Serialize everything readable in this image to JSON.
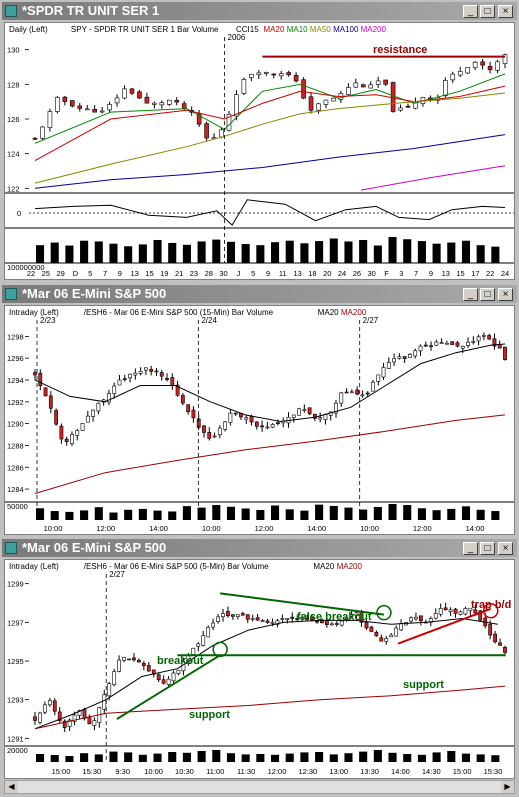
{
  "windows": [
    {
      "title": "*SPDR TR UNIT SER 1",
      "header": [
        {
          "text": "Daily  (Left)",
          "color": "#000000"
        },
        {
          "text": "SPY - SPDR TR UNIT SER 1  Bar  Volume",
          "color": "#000000"
        },
        {
          "text": "CCI15",
          "color": "#000000"
        },
        {
          "text": "MA20",
          "color": "#cc0000"
        },
        {
          "text": "MA10",
          "color": "#008800"
        },
        {
          "text": "MA50",
          "color": "#888800"
        },
        {
          "text": "MA100",
          "color": "#000099"
        },
        {
          "text": "MA200",
          "color": "#cc00cc"
        }
      ],
      "separator_label": "2006",
      "y_ticks": [
        "130",
        "128",
        "126",
        "124",
        "122"
      ],
      "cci_tick": "0",
      "volume_tick": "100000000",
      "x_ticks": [
        "22",
        "25",
        "29",
        "D",
        "5",
        "7",
        "9",
        "13",
        "15",
        "19",
        "21",
        "23",
        "28",
        "30",
        "J",
        "5",
        "9",
        "11",
        "13",
        "18",
        "20",
        "24",
        "26",
        "30",
        "F",
        "3",
        "7",
        "9",
        "13",
        "15",
        "17",
        "22",
        "24"
      ],
      "annotations": [
        {
          "text": "resistance",
          "color": "#990000"
        }
      ]
    },
    {
      "title": "*Mar 06  E-Mini S&P 500",
      "header": [
        {
          "text": "Intraday  (Left)",
          "color": "#000000"
        },
        {
          "text": "/ESH6 - Mar 06  E-Mini S&P 500  (15-Min)  Bar  Volume",
          "color": "#000000"
        },
        {
          "text": "MA20",
          "color": "#000000"
        },
        {
          "text": "MA200",
          "color": "#990000"
        }
      ],
      "separator_labels": [
        "2/23",
        "2/24",
        "2/27"
      ],
      "y_ticks": [
        "1298",
        "1296",
        "1294",
        "1292",
        "1290",
        "1288",
        "1286",
        "1284"
      ],
      "volume_tick": "50000",
      "x_ticks": [
        "10:00",
        "12:00",
        "14:00",
        "10:00",
        "12:00",
        "14:00",
        "10:00",
        "12:00",
        "14:00"
      ]
    },
    {
      "title": "*Mar 06  E-Mini S&P 500",
      "header": [
        {
          "text": "Intraday  (Left)",
          "color": "#000000"
        },
        {
          "text": "/ESH6 - Mar 06  E-Mini S&P 500  (5-Min)  Bar  Volume",
          "color": "#000000"
        },
        {
          "text": "MA20",
          "color": "#000000"
        },
        {
          "text": "MA200",
          "color": "#990000"
        }
      ],
      "separator_labels": [
        "2/27"
      ],
      "y_ticks": [
        "1299",
        "1297",
        "1295",
        "1293",
        "1291"
      ],
      "volume_tick": "20000",
      "x_ticks": [
        "15:00",
        "15:30",
        "9:30",
        "10:00",
        "10:30",
        "11:00",
        "11:30",
        "12:00",
        "12:30",
        "13:00",
        "13:30",
        "14:00",
        "14:30",
        "15:00",
        "15:30"
      ],
      "annotations": [
        {
          "text": "breakout",
          "color": "#006600"
        },
        {
          "text": "support",
          "color": "#006600"
        },
        {
          "text": "false breakout",
          "color": "#006600"
        },
        {
          "text": "support",
          "color": "#006600"
        },
        {
          "text": "trap b/d",
          "color": "#990000"
        }
      ]
    }
  ],
  "chart_data": [
    {
      "type": "candlestick",
      "title": "SPY - SPDR TR UNIT SER 1",
      "timeframe": "Daily",
      "ylim": [
        121.5,
        130.5
      ],
      "close_path": [
        [
          0,
          124.8
        ],
        [
          6,
          127.2
        ],
        [
          12,
          126.6
        ],
        [
          18,
          126.4
        ],
        [
          24,
          127.8
        ],
        [
          30,
          126.8
        ],
        [
          36,
          127.1
        ],
        [
          42,
          126.2
        ],
        [
          46,
          124.6
        ],
        [
          50,
          125.6
        ],
        [
          54,
          128.0
        ],
        [
          58,
          128.8
        ],
        [
          62,
          128.6
        ],
        [
          66,
          128.7
        ],
        [
          70,
          127.9
        ],
        [
          72,
          126.4
        ],
        [
          76,
          127.0
        ],
        [
          80,
          127.3
        ],
        [
          84,
          128.1
        ],
        [
          88,
          127.8
        ],
        [
          92,
          128.4
        ],
        [
          94,
          126.5
        ],
        [
          98,
          126.6
        ],
        [
          102,
          127.3
        ],
        [
          106,
          127.1
        ],
        [
          108,
          128.2
        ],
        [
          112,
          128.8
        ],
        [
          116,
          129.3
        ],
        [
          120,
          128.8
        ],
        [
          124,
          129.7
        ]
      ],
      "ma10_path": [
        [
          0,
          124.6
        ],
        [
          20,
          126.4
        ],
        [
          40,
          126.6
        ],
        [
          50,
          125.4
        ],
        [
          60,
          127.6
        ],
        [
          70,
          128.0
        ],
        [
          80,
          127.2
        ],
        [
          90,
          127.7
        ],
        [
          100,
          126.9
        ],
        [
          112,
          127.6
        ],
        [
          124,
          128.6
        ]
      ],
      "ma20_path": [
        [
          0,
          123.6
        ],
        [
          20,
          126.0
        ],
        [
          40,
          126.5
        ],
        [
          50,
          126.0
        ],
        [
          60,
          126.9
        ],
        [
          70,
          127.6
        ],
        [
          80,
          127.3
        ],
        [
          90,
          127.4
        ],
        [
          100,
          127.0
        ],
        [
          112,
          127.3
        ],
        [
          124,
          127.9
        ]
      ],
      "ma50_path": [
        [
          0,
          122.3
        ],
        [
          20,
          123.4
        ],
        [
          40,
          124.4
        ],
        [
          50,
          125.0
        ],
        [
          60,
          125.7
        ],
        [
          70,
          126.3
        ],
        [
          80,
          126.6
        ],
        [
          90,
          126.8
        ],
        [
          100,
          127.0
        ],
        [
          112,
          127.2
        ],
        [
          124,
          127.5
        ]
      ],
      "ma100_path": [
        [
          0,
          122.0
        ],
        [
          20,
          122.5
        ],
        [
          40,
          122.8
        ],
        [
          60,
          123.2
        ],
        [
          80,
          123.8
        ],
        [
          100,
          124.3
        ],
        [
          124,
          125.1
        ]
      ],
      "ma200_path": [
        [
          86,
          121.9
        ],
        [
          104,
          122.6
        ],
        [
          124,
          123.3
        ]
      ],
      "resistance": {
        "x0": 60,
        "x1": 124,
        "y": 129.6
      },
      "cci_path": [
        [
          0,
          40
        ],
        [
          10,
          60
        ],
        [
          20,
          70
        ],
        [
          30,
          -20
        ],
        [
          40,
          -40
        ],
        [
          48,
          20
        ],
        [
          52,
          -110
        ],
        [
          56,
          120
        ],
        [
          66,
          80
        ],
        [
          74,
          -70
        ],
        [
          82,
          30
        ],
        [
          90,
          60
        ],
        [
          96,
          -40
        ],
        [
          104,
          -60
        ],
        [
          110,
          30
        ],
        [
          118,
          60
        ],
        [
          124,
          50
        ]
      ],
      "volume": [
        48,
        55,
        47,
        60,
        58,
        52,
        45,
        50,
        62,
        54,
        49,
        58,
        63,
        57,
        51,
        48,
        56,
        60,
        53,
        59,
        66,
        58,
        62,
        47,
        70,
        64,
        59,
        52,
        55,
        60,
        48,
        44
      ]
    },
    {
      "type": "candlestick",
      "title": "/ESH6 - Mar 06 E-Mini S&P 500 (15-Min)",
      "timeframe": "15-Min",
      "ylim": [
        1283,
        1299.5
      ],
      "close_path": [
        [
          0,
          1294.5
        ],
        [
          4,
          1292.0
        ],
        [
          8,
          1288.0
        ],
        [
          12,
          1289.5
        ],
        [
          16,
          1291.0
        ],
        [
          20,
          1292.5
        ],
        [
          24,
          1294.0
        ],
        [
          28,
          1294.5
        ],
        [
          32,
          1295.0
        ],
        [
          36,
          1294.5
        ],
        [
          40,
          1293.0
        ],
        [
          46,
          1290.0
        ],
        [
          50,
          1288.5
        ],
        [
          56,
          1291.0
        ],
        [
          60,
          1290.5
        ],
        [
          64,
          1289.5
        ],
        [
          70,
          1290.0
        ],
        [
          76,
          1291.5
        ],
        [
          80,
          1290.5
        ],
        [
          84,
          1291.0
        ],
        [
          88,
          1293.0
        ],
        [
          94,
          1292.5
        ],
        [
          98,
          1294.5
        ],
        [
          102,
          1296.0
        ],
        [
          106,
          1296.0
        ],
        [
          110,
          1297.0
        ],
        [
          116,
          1297.5
        ],
        [
          120,
          1297.0
        ],
        [
          124,
          1297.5
        ],
        [
          128,
          1298.0
        ],
        [
          132,
          1297.0
        ],
        [
          134,
          1296.0
        ]
      ],
      "ma20_path": [
        [
          0,
          1294
        ],
        [
          10,
          1292.5
        ],
        [
          20,
          1292.0
        ],
        [
          30,
          1293.5
        ],
        [
          40,
          1293.5
        ],
        [
          50,
          1292.0
        ],
        [
          60,
          1290.8
        ],
        [
          70,
          1290.2
        ],
        [
          80,
          1290.6
        ],
        [
          90,
          1291.5
        ],
        [
          100,
          1293.5
        ],
        [
          110,
          1295.5
        ],
        [
          120,
          1296.5
        ],
        [
          130,
          1297.2
        ],
        [
          134,
          1297.3
        ]
      ],
      "ma200_path": [
        [
          0,
          1283.6
        ],
        [
          20,
          1285.5
        ],
        [
          40,
          1286.6
        ],
        [
          60,
          1287.6
        ],
        [
          80,
          1288.4
        ],
        [
          100,
          1289.3
        ],
        [
          120,
          1290.3
        ],
        [
          134,
          1290.8
        ]
      ],
      "volume": [
        55,
        42,
        38,
        45,
        60,
        35,
        48,
        52,
        44,
        40,
        65,
        58,
        70,
        62,
        54,
        47,
        68,
        50,
        44,
        72,
        66,
        58,
        49,
        61,
        75,
        70,
        55,
        46,
        52,
        64,
        48,
        42
      ]
    },
    {
      "type": "candlestick",
      "title": "/ESH6 - Mar 06 E-Mini S&P 500 (5-Min)",
      "timeframe": "5-Min",
      "ylim": [
        1290.5,
        1299.5
      ],
      "close_path": [
        [
          0,
          1292.0
        ],
        [
          4,
          1293.0
        ],
        [
          8,
          1291.5
        ],
        [
          12,
          1292.5
        ],
        [
          16,
          1291.5
        ],
        [
          20,
          1293.5
        ],
        [
          24,
          1295.3
        ],
        [
          28,
          1295.0
        ],
        [
          32,
          1294.5
        ],
        [
          36,
          1293.8
        ],
        [
          40,
          1294.5
        ],
        [
          44,
          1295.5
        ],
        [
          48,
          1296.5
        ],
        [
          52,
          1297.5
        ],
        [
          58,
          1297.3
        ],
        [
          64,
          1297.0
        ],
        [
          70,
          1297.2
        ],
        [
          76,
          1297.2
        ],
        [
          82,
          1296.8
        ],
        [
          86,
          1297.0
        ],
        [
          90,
          1297.5
        ],
        [
          94,
          1296.5
        ],
        [
          98,
          1296.0
        ],
        [
          102,
          1296.8
        ],
        [
          106,
          1297.3
        ],
        [
          110,
          1297.0
        ],
        [
          114,
          1297.8
        ],
        [
          118,
          1297.5
        ],
        [
          122,
          1297.8
        ],
        [
          126,
          1297.0
        ],
        [
          128,
          1296.3
        ],
        [
          132,
          1295.5
        ]
      ],
      "ma20_path": [
        [
          0,
          1291.5
        ],
        [
          10,
          1292.2
        ],
        [
          20,
          1293.0
        ],
        [
          30,
          1294.2
        ],
        [
          40,
          1294.6
        ],
        [
          50,
          1295.8
        ],
        [
          60,
          1296.6
        ],
        [
          70,
          1297.0
        ],
        [
          80,
          1297.1
        ],
        [
          90,
          1297.1
        ],
        [
          100,
          1296.9
        ],
        [
          110,
          1297.0
        ],
        [
          120,
          1297.2
        ],
        [
          130,
          1296.9
        ]
      ],
      "ma200_path": [
        [
          0,
          1291.5
        ],
        [
          20,
          1292.3
        ],
        [
          40,
          1292.5
        ],
        [
          60,
          1292.7
        ],
        [
          80,
          1293.0
        ],
        [
          100,
          1293.2
        ],
        [
          120,
          1293.5
        ],
        [
          132,
          1293.7
        ]
      ],
      "support_lines": [
        {
          "x0": 40,
          "x1": 132,
          "y": 1295.3
        }
      ],
      "rising_trendline": {
        "x0": 23,
        "y0": 1292.0,
        "x1": 52,
        "y1": 1295.3
      },
      "falling_trendline": {
        "x0": 52,
        "y0": 1298.5,
        "x1": 98,
        "y1": 1297.4
      },
      "red_trendline": {
        "x0": 102,
        "y0": 1295.9,
        "x1": 128,
        "y1": 1297.7
      },
      "circles": [
        {
          "x": 52,
          "y": 1295.6
        },
        {
          "x": 98,
          "y": 1297.5
        },
        {
          "x": 128,
          "y": 1297.6
        }
      ],
      "volume": [
        40,
        35,
        30,
        44,
        38,
        52,
        48,
        36,
        42,
        50,
        46,
        55,
        60,
        44,
        38,
        40,
        36,
        42,
        48,
        50,
        38,
        44,
        52,
        60,
        46,
        40,
        36,
        48,
        55,
        42,
        38,
        34
      ]
    }
  ]
}
